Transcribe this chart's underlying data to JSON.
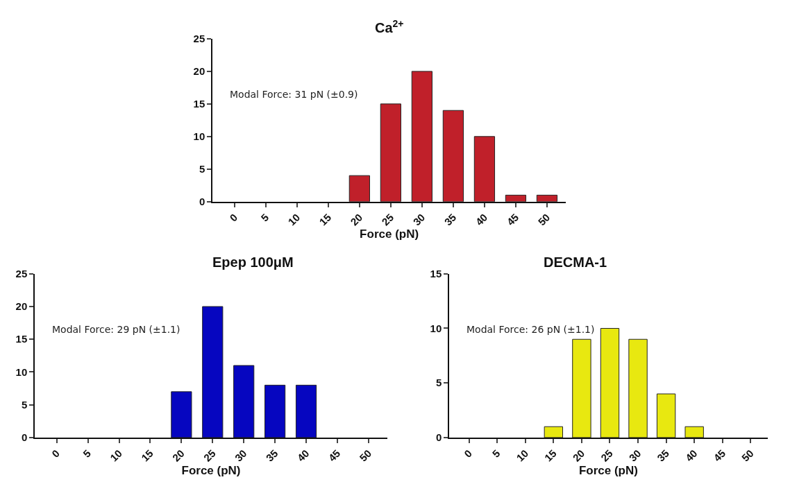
{
  "chart_data": [
    {
      "type": "bar",
      "title": "Ca$^{2+}$",
      "xlabel": "Force (pN)",
      "categories": [
        "0",
        "5",
        "10",
        "15",
        "20",
        "25",
        "30",
        "35",
        "40",
        "45",
        "50"
      ],
      "series": [
        {
          "color": "#c0202a",
          "values": [
            0,
            0,
            0,
            0,
            4,
            15,
            20,
            14,
            10,
            1,
            1
          ]
        }
      ],
      "ylim": [
        0,
        25
      ],
      "yticks": [
        0,
        5,
        10,
        15,
        20,
        25
      ],
      "annotations": [
        "Modal Force: 31 pN (±0.9)"
      ]
    },
    {
      "type": "bar",
      "title": "Epep 100μM",
      "xlabel": "Force (pN)",
      "categories": [
        "0",
        "5",
        "10",
        "15",
        "20",
        "25",
        "30",
        "35",
        "40",
        "45",
        "50"
      ],
      "series": [
        {
          "color": "#0606c0",
          "values": [
            0,
            0,
            0,
            0,
            7,
            20,
            11,
            8,
            8,
            0,
            0
          ]
        }
      ],
      "ylim": [
        0,
        25
      ],
      "yticks": [
        0,
        5,
        10,
        15,
        20,
        25
      ],
      "annotations": [
        "Modal Force: 29 pN (±1.1)"
      ]
    },
    {
      "type": "bar",
      "title": "DECMA-1",
      "xlabel": "Force (pN)",
      "categories": [
        "0",
        "5",
        "10",
        "15",
        "20",
        "25",
        "30",
        "35",
        "40",
        "45",
        "50"
      ],
      "series": [
        {
          "color": "#e8e810",
          "values": [
            0,
            0,
            0,
            1,
            9,
            10,
            9,
            4,
            1,
            0,
            0
          ]
        }
      ],
      "ylim": [
        0,
        15
      ],
      "yticks": [
        0,
        5,
        10,
        15
      ],
      "annotations": [
        "Modal Force: 26 pN (±1.1)"
      ]
    }
  ]
}
